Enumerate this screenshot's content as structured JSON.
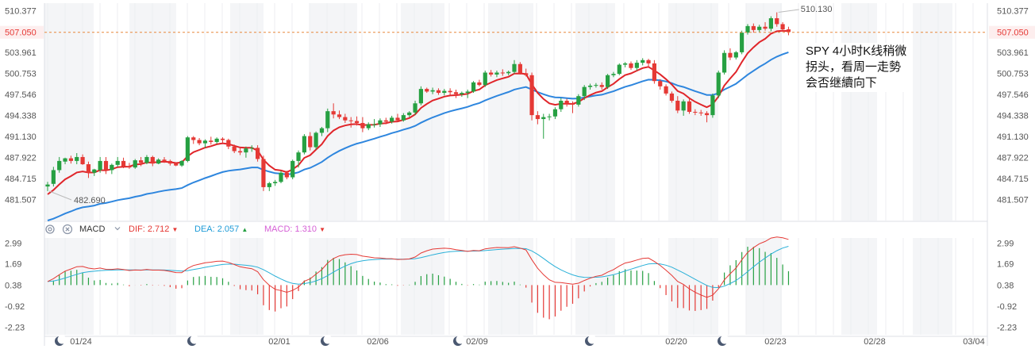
{
  "chart_data": {
    "type": "candlestick",
    "price_axis": {
      "ticks": [
        "510.377",
        "507.050",
        "503.961",
        "500.753",
        "497.546",
        "494.338",
        "491.130",
        "487.922",
        "484.715",
        "481.507"
      ],
      "range": [
        478.3,
        511.5
      ],
      "current_price": "507.050"
    },
    "x_axis": {
      "labels": [
        "01/24",
        "02/01",
        "02/06",
        "02/09",
        "02/20",
        "02/23",
        "02/28",
        "03/04"
      ]
    },
    "candles": [
      [
        483.5,
        484.2,
        482.8,
        483.8
      ],
      [
        483.9,
        486.5,
        483.5,
        486.0
      ],
      [
        486.0,
        488.0,
        485.6,
        487.4
      ],
      [
        487.3,
        487.9,
        486.9,
        487.8
      ],
      [
        487.8,
        488.2,
        487.0,
        487.4
      ],
      [
        487.4,
        488.6,
        486.9,
        488.0
      ],
      [
        488.0,
        488.4,
        486.8,
        486.9
      ],
      [
        486.9,
        487.3,
        484.8,
        485.6
      ],
      [
        485.6,
        486.2,
        485.1,
        486.1
      ],
      [
        486.0,
        488.0,
        485.6,
        487.4
      ],
      [
        487.4,
        488.0,
        485.4,
        486.0
      ],
      [
        486.0,
        487.0,
        485.4,
        486.8
      ],
      [
        486.8,
        488.0,
        486.5,
        487.4
      ],
      [
        487.4,
        487.9,
        486.3,
        486.6
      ],
      [
        486.6,
        487.1,
        486.2,
        486.4
      ],
      [
        486.4,
        487.7,
        486.2,
        487.5
      ],
      [
        487.5,
        488.0,
        486.6,
        487.1
      ],
      [
        487.1,
        488.3,
        486.9,
        488.0
      ],
      [
        488.0,
        488.2,
        486.6,
        487.0
      ],
      [
        487.0,
        487.8,
        486.9,
        487.6
      ],
      [
        487.6,
        488.0,
        487.1,
        487.4
      ],
      [
        487.4,
        487.6,
        486.7,
        487.0
      ],
      [
        487.0,
        487.2,
        486.6,
        486.7
      ],
      [
        486.7,
        487.5,
        486.5,
        487.4
      ],
      [
        487.4,
        491.2,
        487.2,
        491.0
      ],
      [
        491.0,
        491.2,
        490.0,
        490.6
      ],
      [
        490.6,
        490.9,
        489.8,
        490.1
      ],
      [
        490.1,
        490.7,
        489.4,
        490.5
      ],
      [
        490.5,
        491.1,
        489.9,
        490.3
      ],
      [
        490.3,
        491.0,
        490.0,
        490.8
      ],
      [
        490.8,
        491.0,
        490.2,
        490.6
      ],
      [
        490.6,
        490.8,
        489.2,
        489.6
      ],
      [
        489.6,
        489.9,
        488.6,
        488.9
      ],
      [
        488.9,
        489.4,
        488.3,
        488.7
      ],
      [
        488.7,
        489.6,
        487.9,
        489.3
      ],
      [
        489.3,
        489.8,
        488.8,
        489.4
      ],
      [
        489.4,
        489.8,
        487.3,
        487.7
      ],
      [
        487.7,
        488.2,
        482.8,
        483.4
      ],
      [
        483.4,
        484.2,
        482.8,
        484.0
      ],
      [
        484.0,
        484.5,
        483.6,
        484.2
      ],
      [
        484.2,
        485.9,
        484.0,
        485.6
      ],
      [
        485.6,
        485.9,
        484.6,
        484.9
      ],
      [
        484.9,
        487.6,
        484.6,
        487.4
      ],
      [
        487.4,
        489.0,
        486.4,
        488.7
      ],
      [
        488.7,
        491.5,
        488.4,
        491.2
      ],
      [
        491.2,
        491.8,
        489.0,
        489.5
      ],
      [
        489.5,
        491.9,
        489.1,
        491.7
      ],
      [
        491.7,
        492.6,
        491.2,
        492.4
      ],
      [
        492.4,
        495.4,
        491.8,
        495.0
      ],
      [
        495.0,
        496.2,
        493.9,
        494.5
      ],
      [
        494.5,
        495.1,
        493.8,
        494.1
      ],
      [
        494.1,
        494.6,
        493.2,
        493.6
      ],
      [
        493.6,
        494.1,
        492.5,
        493.5
      ],
      [
        493.5,
        494.2,
        492.8,
        493.2
      ],
      [
        493.2,
        494.1,
        491.8,
        492.4
      ],
      [
        492.4,
        493.3,
        492.1,
        493.0
      ],
      [
        493.0,
        493.8,
        492.5,
        493.0
      ],
      [
        493.0,
        493.9,
        492.6,
        493.6
      ],
      [
        493.6,
        494.0,
        493.0,
        493.4
      ],
      [
        493.4,
        494.3,
        493.1,
        494.0
      ],
      [
        494.0,
        494.6,
        493.4,
        493.6
      ],
      [
        493.6,
        494.7,
        493.4,
        494.4
      ],
      [
        494.4,
        495.0,
        494.1,
        494.8
      ],
      [
        494.8,
        496.6,
        494.4,
        496.2
      ],
      [
        496.2,
        498.8,
        495.9,
        498.4
      ],
      [
        498.4,
        498.6,
        497.8,
        498.0
      ],
      [
        498.0,
        498.6,
        497.6,
        498.2
      ],
      [
        498.2,
        498.5,
        497.5,
        497.8
      ],
      [
        497.8,
        498.4,
        497.4,
        498.1
      ],
      [
        498.1,
        498.5,
        497.5,
        497.9
      ],
      [
        497.9,
        498.3,
        497.0,
        497.6
      ],
      [
        497.6,
        498.0,
        497.2,
        497.8
      ],
      [
        497.8,
        498.3,
        497.0,
        498.0
      ],
      [
        498.0,
        499.6,
        497.8,
        499.4
      ],
      [
        499.4,
        499.8,
        498.8,
        499.0
      ],
      [
        499.0,
        501.2,
        498.7,
        500.9
      ],
      [
        500.9,
        501.3,
        500.3,
        500.6
      ],
      [
        500.6,
        501.2,
        500.2,
        500.9
      ],
      [
        500.9,
        501.4,
        500.4,
        500.8
      ],
      [
        500.8,
        501.2,
        500.5,
        501.0
      ],
      [
        501.0,
        502.8,
        500.7,
        502.2
      ],
      [
        502.2,
        502.5,
        500.6,
        500.8
      ],
      [
        500.8,
        501.5,
        500.3,
        500.5
      ],
      [
        500.5,
        500.9,
        493.6,
        494.4
      ],
      [
        494.4,
        495.0,
        493.0,
        493.8
      ],
      [
        493.8,
        494.6,
        490.8,
        494.1
      ],
      [
        494.1,
        494.6,
        493.6,
        494.2
      ],
      [
        494.2,
        495.6,
        493.8,
        495.3
      ],
      [
        495.3,
        497.0,
        494.9,
        496.6
      ],
      [
        496.6,
        496.9,
        495.7,
        496.2
      ],
      [
        496.2,
        496.5,
        494.7,
        496.0
      ],
      [
        496.0,
        497.6,
        495.7,
        497.3
      ],
      [
        497.3,
        499.0,
        496.7,
        498.7
      ],
      [
        498.7,
        499.2,
        498.3,
        498.9
      ],
      [
        498.9,
        499.3,
        498.6,
        499.0
      ],
      [
        499.0,
        499.4,
        498.3,
        498.7
      ],
      [
        498.7,
        500.7,
        498.4,
        500.5
      ],
      [
        500.5,
        501.0,
        500.2,
        500.7
      ],
      [
        500.7,
        502.3,
        500.5,
        502.1
      ],
      [
        502.1,
        502.5,
        501.7,
        502.3
      ],
      [
        502.3,
        502.6,
        501.3,
        501.6
      ],
      [
        501.6,
        502.8,
        501.2,
        502.4
      ],
      [
        502.4,
        503.1,
        502.0,
        502.8
      ],
      [
        502.8,
        503.0,
        501.9,
        502.3
      ],
      [
        502.3,
        502.8,
        499.2,
        499.6
      ],
      [
        499.6,
        499.9,
        498.3,
        498.8
      ],
      [
        498.8,
        499.1,
        497.4,
        497.7
      ],
      [
        497.7,
        498.0,
        496.3,
        496.6
      ],
      [
        496.6,
        497.3,
        494.7,
        495.1
      ],
      [
        495.1,
        496.8,
        494.3,
        496.5
      ],
      [
        496.5,
        496.9,
        494.6,
        494.9
      ],
      [
        494.9,
        495.3,
        494.4,
        494.8
      ],
      [
        494.8,
        495.2,
        494.3,
        494.7
      ],
      [
        494.7,
        495.0,
        493.3,
        494.4
      ],
      [
        494.4,
        497.7,
        494.0,
        497.4
      ],
      [
        497.4,
        501.2,
        497.0,
        500.9
      ],
      [
        500.9,
        504.3,
        500.6,
        503.9
      ],
      [
        503.9,
        504.6,
        502.8,
        503.2
      ],
      [
        503.2,
        504.2,
        502.9,
        504.0
      ],
      [
        504.0,
        507.3,
        503.7,
        507.0
      ],
      [
        507.0,
        508.3,
        506.7,
        508.0
      ],
      [
        508.0,
        508.4,
        507.0,
        507.4
      ],
      [
        507.4,
        508.2,
        507.0,
        507.9
      ],
      [
        507.9,
        508.6,
        507.3,
        507.6
      ],
      [
        507.6,
        509.5,
        507.2,
        509.2
      ],
      [
        509.2,
        510.1,
        507.9,
        508.3
      ],
      [
        508.3,
        508.6,
        507.3,
        507.5
      ],
      [
        507.5,
        507.9,
        506.6,
        507.1
      ]
    ],
    "annotations": [
      {
        "type": "high",
        "label": "510.130",
        "value": 510.13
      },
      {
        "type": "low",
        "label": "482.690",
        "value": 482.69
      }
    ],
    "note": "SPY 4小时K线稍微拐头，看周一走勢会否继續向下",
    "macd": {
      "label": "MACD",
      "items": [
        {
          "name": "DIF:",
          "value": "2.712",
          "color": "#e53935"
        },
        {
          "name": "DEA:",
          "value": "2.057",
          "color": "#1e9bd7"
        },
        {
          "name": "MACD:",
          "value": "1.310",
          "color": "#d65fd6"
        }
      ],
      "ticks": [
        "2.99",
        "1.69",
        "0.38",
        "-0.92",
        "-2.23"
      ],
      "range": [
        -2.7,
        3.3
      ]
    },
    "colors": {
      "up": "#26a042",
      "down": "#e53935",
      "ma_fast": "#e0252a",
      "ma_slow": "#2e86de",
      "dif": "#e53935",
      "dea": "#2ab0d8",
      "price_line": "#e8873a"
    }
  }
}
